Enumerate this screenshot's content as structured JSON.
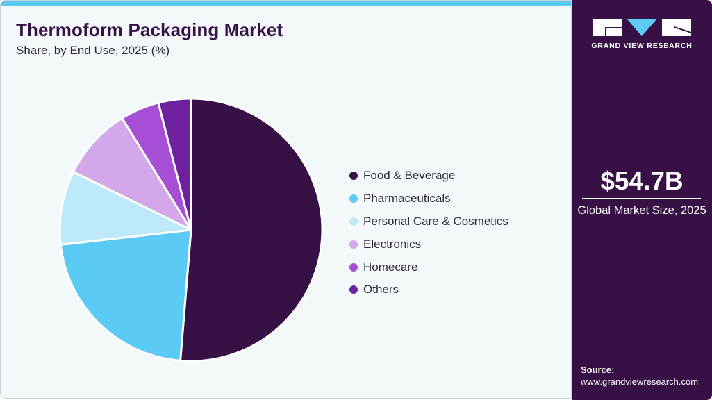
{
  "header": {
    "title": "Thermoform Packaging Market",
    "subtitle": "Share, by End Use, 2025 (%)"
  },
  "sidebar": {
    "logo_text": "GRAND VIEW RESEARCH",
    "market_value": "$54.7B",
    "market_label": "Global Market Size, 2025",
    "source_label": "Source:",
    "source_url": "www.grandviewresearch.com"
  },
  "colors": {
    "brand_dark": "#371146",
    "accent_blue": "#5bcaf5",
    "background": "#f3f8fb"
  },
  "legend": [
    {
      "label": "Food & Beverage",
      "color": "#371146"
    },
    {
      "label": "Pharmaceuticals",
      "color": "#5bcaf5"
    },
    {
      "label": "Personal Care & Cosmetics",
      "color": "#bde9f9"
    },
    {
      "label": "Electronics",
      "color": "#d3a8ea"
    },
    {
      "label": "Homecare",
      "color": "#a64fd6"
    },
    {
      "label": "Others",
      "color": "#6e219e"
    }
  ],
  "chart_data": {
    "type": "pie",
    "title": "Thermoform Packaging Market",
    "subtitle": "Share, by End Use, 2025 (%)",
    "categories": [
      "Food & Beverage",
      "Pharmaceuticals",
      "Personal Care & Cosmetics",
      "Electronics",
      "Homecare",
      "Others"
    ],
    "values": [
      51.3,
      21.9,
      9.1,
      8.9,
      4.8,
      4.0
    ],
    "colors": [
      "#371146",
      "#5bcaf5",
      "#bde9f9",
      "#d3a8ea",
      "#a64fd6",
      "#6e219e"
    ],
    "start_angle": "12 o'clock, clockwise",
    "legend_position": "right",
    "data_labels": false
  }
}
